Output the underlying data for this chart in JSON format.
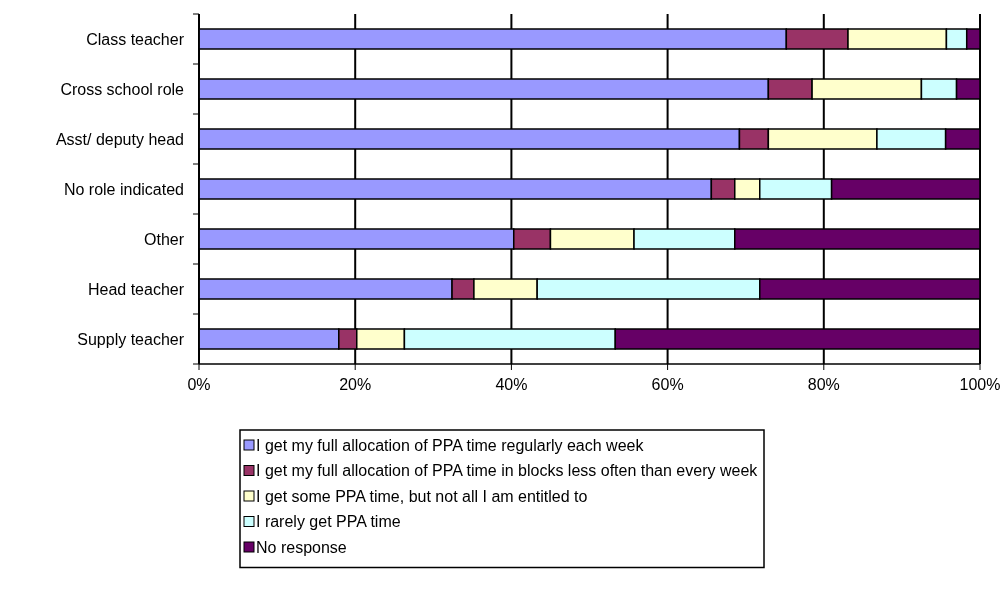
{
  "chart_data": {
    "type": "bar",
    "orientation": "horizontal",
    "stacked": true,
    "categories": [
      "Class teacher",
      "Cross school role",
      "Asst/ deputy head",
      "No role indicated",
      "Other",
      "Head teacher",
      "Supply teacher"
    ],
    "series": [
      {
        "name": "I get my full allocation of PPA time regularly each week",
        "color": "#9999ff",
        "values": [
          75.2,
          72.9,
          69.2,
          65.6,
          40.3,
          32.4,
          17.9
        ]
      },
      {
        "name": "I get my full allocation of PPA time in blocks less often than every week",
        "color": "#993366",
        "values": [
          7.9,
          5.6,
          3.7,
          3.0,
          4.7,
          2.8,
          2.3
        ]
      },
      {
        "name": "I get some PPA time, but not all I am entitled to",
        "color": "#ffffcc",
        "values": [
          12.6,
          14.0,
          13.9,
          3.2,
          10.7,
          8.1,
          6.1
        ]
      },
      {
        "name": "I rarely get PPA time",
        "color": "#ccffff",
        "values": [
          2.6,
          4.5,
          8.8,
          9.2,
          12.9,
          28.5,
          27.0
        ]
      },
      {
        "name": "No response",
        "color": "#660066",
        "values": [
          1.7,
          3.0,
          4.4,
          19.0,
          31.4,
          28.2,
          46.7
        ]
      }
    ],
    "xlim": [
      0,
      100
    ],
    "xticks": [
      {
        "value": 0,
        "label": "0%"
      },
      {
        "value": 20,
        "label": "20%"
      },
      {
        "value": 40,
        "label": "40%"
      },
      {
        "value": 60,
        "label": "60%"
      },
      {
        "value": 80,
        "label": "80%"
      },
      {
        "value": 100,
        "label": "100%"
      }
    ],
    "grid": "x",
    "legend": "bottom"
  }
}
